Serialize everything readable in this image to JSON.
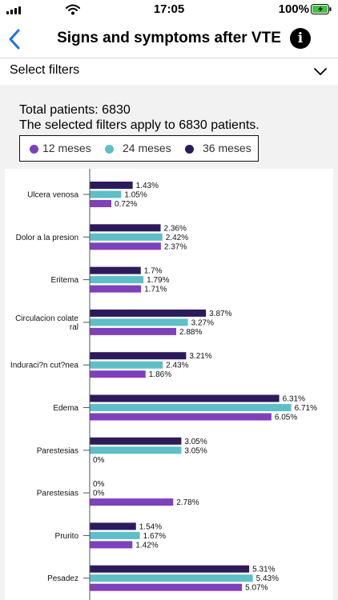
{
  "status_bar": {
    "time": "17:05",
    "battery": "100%"
  },
  "nav": {
    "title": "Signs and symptoms after VTE"
  },
  "filter": {
    "label": "Select filters"
  },
  "summary": {
    "total": "Total patients: 6830",
    "note": "The selected filters apply to 6830 patients."
  },
  "legend": [
    {
      "label": "12 meses",
      "color": "#7f3fbf"
    },
    {
      "label": "24 meses",
      "color": "#5bc0c8"
    },
    {
      "label": "36 meses",
      "color": "#2d1a5e"
    }
  ],
  "chart_data": {
    "type": "bar",
    "orientation": "horizontal",
    "categories": [
      [
        "Ulcera venosa"
      ],
      [
        "Dolor a la presion"
      ],
      [
        "Eritema"
      ],
      [
        "Circulacion colate",
        "ral"
      ],
      [
        "Induraci?n cut?nea"
      ],
      [
        "Edema"
      ],
      [
        "Parestesias"
      ],
      [
        "Parestesias"
      ],
      [
        "Prurito"
      ],
      [
        "Pesadez"
      ]
    ],
    "series": [
      {
        "name": "36 meses",
        "color": "#2d1a5e",
        "values": [
          1.43,
          2.36,
          1.7,
          3.87,
          3.21,
          6.31,
          3.05,
          0,
          1.54,
          5.31
        ],
        "labels": [
          "1.43%",
          "2.36%",
          "1.7%",
          "3.87%",
          "3.21%",
          "6.31%",
          "3.05%",
          "0%",
          "1.54%",
          "5.31%"
        ]
      },
      {
        "name": "24 meses",
        "color": "#5bc0c8",
        "values": [
          1.05,
          2.42,
          1.79,
          3.27,
          2.43,
          6.71,
          3.05,
          0,
          1.67,
          5.43
        ],
        "labels": [
          "1.05%",
          "2.42%",
          "1.79%",
          "3.27%",
          "2.43%",
          "6.71%",
          "3.05%",
          "0%",
          "1.67%",
          "5.43%"
        ]
      },
      {
        "name": "12 meses",
        "color": "#7f3fbf",
        "values": [
          0.72,
          2.37,
          1.71,
          2.88,
          1.86,
          6.05,
          0,
          2.78,
          1.42,
          5.07
        ],
        "labels": [
          "0.72%",
          "2.37%",
          "1.71%",
          "2.88%",
          "1.86%",
          "6.05%",
          "0%",
          "2.78%",
          "1.42%",
          "5.07%"
        ]
      }
    ],
    "xlim": [
      0,
      7
    ],
    "grid": false,
    "legend_position": "top"
  }
}
